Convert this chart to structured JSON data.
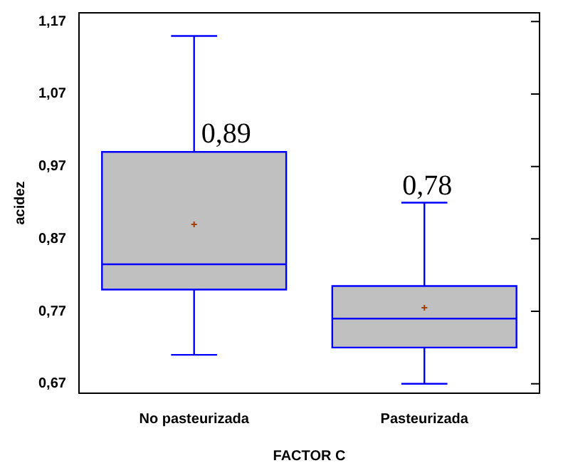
{
  "chart_data": {
    "type": "box",
    "xlabel": "FACTOR C",
    "ylabel": "acidez",
    "categories": [
      "No pasteurizada",
      "Pasteurizada"
    ],
    "color": "#c0c0c0",
    "boxes": [
      {
        "low": 0.71,
        "q1": 0.8,
        "median": 0.835,
        "q3": 0.99,
        "high": 1.15,
        "mean": 0.89
      },
      {
        "low": 0.67,
        "q1": 0.72,
        "median": 0.76,
        "q3": 0.805,
        "high": 0.92,
        "mean": 0.775
      }
    ],
    "ylim": [
      0.657,
      1.182
    ],
    "yticks": [
      {
        "value": 0.67,
        "label": "0,67"
      },
      {
        "value": 0.77,
        "label": "0,77"
      },
      {
        "value": 0.87,
        "label": "0,87"
      },
      {
        "value": 0.97,
        "label": "0,97"
      },
      {
        "value": 1.07,
        "label": "1,07"
      },
      {
        "value": 1.17,
        "label": "1,17"
      }
    ],
    "grid": false,
    "legend": false,
    "annotations": [
      "0,89",
      "0,78"
    ]
  }
}
